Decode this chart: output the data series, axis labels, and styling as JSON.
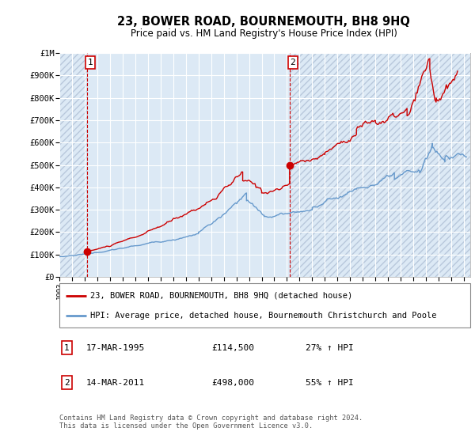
{
  "title": "23, BOWER ROAD, BOURNEMOUTH, BH8 9HQ",
  "subtitle": "Price paid vs. HM Land Registry's House Price Index (HPI)",
  "legend_line1": "23, BOWER ROAD, BOURNEMOUTH, BH8 9HQ (detached house)",
  "legend_line2": "HPI: Average price, detached house, Bournemouth Christchurch and Poole",
  "annotation1_label": "1",
  "annotation1_date": "17-MAR-1995",
  "annotation1_price": "£114,500",
  "annotation1_hpi": "27% ↑ HPI",
  "annotation2_label": "2",
  "annotation2_date": "14-MAR-2011",
  "annotation2_price": "£498,000",
  "annotation2_hpi": "55% ↑ HPI",
  "footer": "Contains HM Land Registry data © Crown copyright and database right 2024.\nThis data is licensed under the Open Government Licence v3.0.",
  "red_color": "#cc0000",
  "blue_color": "#6699cc",
  "bg_color": "#dce9f5",
  "hatch_color": "#b8c8dc",
  "grid_color": "#ffffff",
  "ylim": [
    0,
    1000000
  ],
  "yticks": [
    0,
    100000,
    200000,
    300000,
    400000,
    500000,
    600000,
    700000,
    800000,
    900000,
    1000000
  ],
  "xlim_start": 1993.0,
  "xlim_end": 2025.5,
  "transaction1_x": 1995.21,
  "transaction1_y": 114500,
  "transaction2_x": 2011.21,
  "transaction2_y": 498000,
  "hatch_left_end": 1995.21,
  "hatch_right_start": 2011.21
}
